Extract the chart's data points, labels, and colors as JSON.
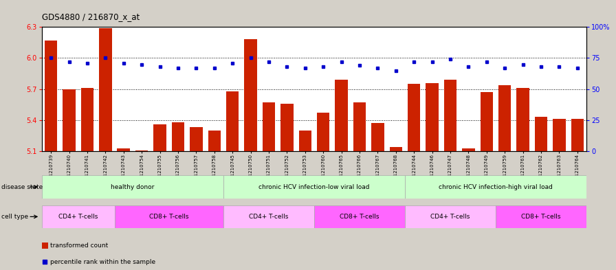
{
  "title": "GDS4880 / 216870_x_at",
  "samples": [
    "GSM1210739",
    "GSM1210740",
    "GSM1210741",
    "GSM1210742",
    "GSM1210743",
    "GSM1210754",
    "GSM1210755",
    "GSM1210756",
    "GSM1210757",
    "GSM1210758",
    "GSM1210745",
    "GSM1210750",
    "GSM1210751",
    "GSM1210752",
    "GSM1210753",
    "GSM1210760",
    "GSM1210765",
    "GSM1210766",
    "GSM1210767",
    "GSM1210768",
    "GSM1210744",
    "GSM1210746",
    "GSM1210747",
    "GSM1210748",
    "GSM1210749",
    "GSM1210759",
    "GSM1210761",
    "GSM1210762",
    "GSM1210763",
    "GSM1210764"
  ],
  "bar_values": [
    6.17,
    5.7,
    5.71,
    6.29,
    5.13,
    5.11,
    5.36,
    5.38,
    5.33,
    5.3,
    5.68,
    6.18,
    5.57,
    5.56,
    5.3,
    5.47,
    5.79,
    5.57,
    5.37,
    5.14,
    5.75,
    5.76,
    5.79,
    5.13,
    5.67,
    5.74,
    5.71,
    5.43,
    5.41,
    5.41
  ],
  "percentile_values": [
    75,
    72,
    71,
    75,
    71,
    70,
    68,
    67,
    67,
    67,
    71,
    75,
    72,
    68,
    67,
    68,
    72,
    69,
    67,
    65,
    72,
    72,
    74,
    68,
    72,
    67,
    70,
    68,
    68,
    67
  ],
  "ylim_left": [
    5.1,
    6.3
  ],
  "ylim_right": [
    0,
    100
  ],
  "yticks_left": [
    5.1,
    5.4,
    5.7,
    6.0,
    6.3
  ],
  "yticks_right": [
    0,
    25,
    50,
    75,
    100
  ],
  "bar_color": "#cc2200",
  "dot_color": "#0000cc",
  "plot_bg_color": "#ffffff",
  "fig_bg_color": "#d4d0c8",
  "ds_groups": [
    {
      "label": "healthy donor",
      "start": 0,
      "end": 9,
      "color": "#ccffcc"
    },
    {
      "label": "chronic HCV infection-low viral load",
      "start": 10,
      "end": 19,
      "color": "#ccffcc"
    },
    {
      "label": "chronic HCV infection-high viral load",
      "start": 20,
      "end": 29,
      "color": "#ccffcc"
    }
  ],
  "ct_groups": [
    {
      "label": "CD4+ T-cells",
      "start": 0,
      "end": 3,
      "color": "#ffbbff"
    },
    {
      "label": "CD8+ T-cells",
      "start": 4,
      "end": 9,
      "color": "#ff66ff"
    },
    {
      "label": "CD4+ T-cells",
      "start": 10,
      "end": 14,
      "color": "#ffbbff"
    },
    {
      "label": "CD8+ T-cells",
      "start": 15,
      "end": 19,
      "color": "#ff66ff"
    },
    {
      "label": "CD4+ T-cells",
      "start": 20,
      "end": 24,
      "color": "#ffbbff"
    },
    {
      "label": "CD8+ T-cells",
      "start": 25,
      "end": 29,
      "color": "#ff66ff"
    }
  ],
  "disease_state_label": "disease state",
  "cell_type_label": "cell type",
  "legend_bar_label": "transformed count",
  "legend_dot_label": "percentile rank within the sample",
  "gridlines": [
    5.4,
    5.7,
    6.0
  ]
}
